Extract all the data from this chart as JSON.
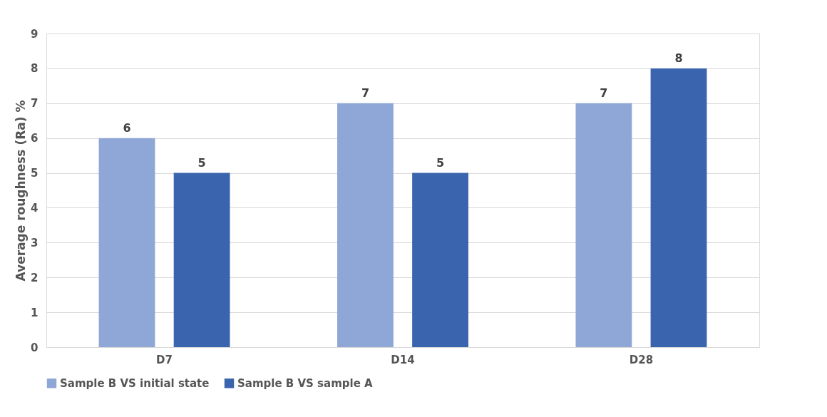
{
  "chart_data": {
    "type": "bar",
    "ylabel": "Average roughness (Ra) %",
    "categories": [
      "D7",
      "D14",
      "D28"
    ],
    "series": [
      {
        "name": "Sample B VS initial state",
        "color": "#8fa7d6",
        "values": [
          6,
          7,
          7
        ]
      },
      {
        "name": "Sample B VS sample A",
        "color": "#3a64ad",
        "values": [
          5,
          5,
          8
        ]
      }
    ],
    "ylim": [
      0,
      9
    ],
    "yticks": [
      0,
      1,
      2,
      3,
      4,
      5,
      6,
      7,
      8,
      9
    ],
    "grid": "y",
    "legend": "bottom",
    "data_labels": true
  }
}
